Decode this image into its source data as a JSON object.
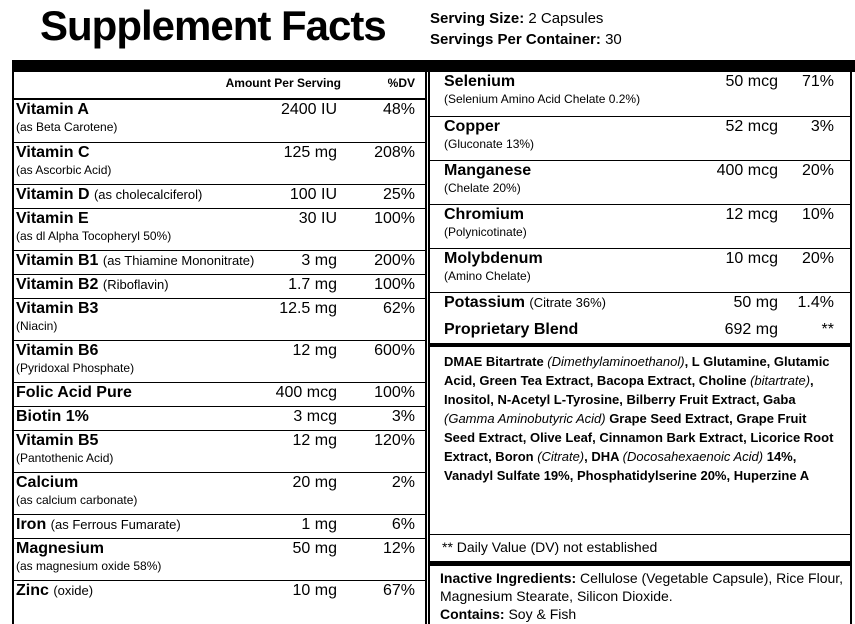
{
  "header": {
    "title": "Supplement Facts",
    "serving_size": {
      "label": "Serving Size:",
      "value": "2 Capsules"
    },
    "servings_per_container": {
      "label": "Servings Per Container:",
      "value": "30"
    }
  },
  "left_table": {
    "column_headers": [
      "Amount Per Serving",
      "%DV"
    ],
    "rows": [
      {
        "name": "Vitamin A",
        "note": "(as Beta Carotene)",
        "amount": "2400 IU",
        "dv": "48%"
      },
      {
        "name": "Vitamin C",
        "note": "(as Ascorbic Acid)",
        "amount": "125 mg",
        "dv": "208%"
      },
      {
        "name": "Vitamin D",
        "inline_note": "(as cholecalciferol)",
        "amount": "100 IU",
        "dv": "25%"
      },
      {
        "name": "Vitamin E",
        "note": "(as dl Alpha Tocopheryl 50%)",
        "amount": "30 IU",
        "dv": "100%"
      },
      {
        "name": "Vitamin B1",
        "inline_note": "(as Thiamine Mononitrate)",
        "amount": "3 mg",
        "dv": "200%"
      },
      {
        "name": "Vitamin B2",
        "inline_note": "(Riboflavin)",
        "amount": "1.7 mg",
        "dv": "100%"
      },
      {
        "name": "Vitamin B3",
        "note": "(Niacin)",
        "amount": "12.5 mg",
        "dv": "62%"
      },
      {
        "name": "Vitamin B6",
        "note": "(Pyridoxal Phosphate)",
        "amount": "12 mg",
        "dv": "600%"
      },
      {
        "name": "Folic Acid Pure",
        "amount": "400 mcg",
        "dv": "100%"
      },
      {
        "name": "Biotin 1%",
        "amount": "3 mcg",
        "dv": "3%"
      },
      {
        "name": "Vitamin B5",
        "note": "(Pantothenic Acid)",
        "amount": "12 mg",
        "dv": "120%"
      },
      {
        "name": "Calcium",
        "note": "(as calcium carbonate)",
        "amount": "20 mg",
        "dv": "2%"
      },
      {
        "name": "Iron",
        "inline_note": "(as Ferrous Fumarate)",
        "amount": "1 mg",
        "dv": "6%"
      },
      {
        "name": "Magnesium",
        "note": "(as magnesium oxide 58%)",
        "amount": "50 mg",
        "dv": "12%"
      },
      {
        "name": "Zinc",
        "inline_note": "(oxide)",
        "amount": "10 mg",
        "dv": "67%"
      }
    ]
  },
  "right_table": {
    "rows": [
      {
        "name": "Selenium",
        "note": "(Selenium Amino Acid Chelate 0.2%)",
        "amount": "50 mcg",
        "dv": "71%"
      },
      {
        "name": "Copper",
        "note": "(Gluconate 13%)",
        "amount": "52 mcg",
        "dv": "3%"
      },
      {
        "name": "Manganese",
        "note": "(Chelate 20%)",
        "amount": "400 mcg",
        "dv": "20%"
      },
      {
        "name": "Chromium",
        "note": "(Polynicotinate)",
        "amount": "12 mcg",
        "dv": "10%"
      },
      {
        "name": "Molybdenum",
        "note": "(Amino Chelate)",
        "amount": "10 mcg",
        "dv": "20%"
      },
      {
        "name": "Potassium",
        "inline_note": "(Citrate 36%)",
        "amount": "50 mg",
        "dv": "1.4%"
      }
    ]
  },
  "proprietary_blend": {
    "name": "Proprietary Blend",
    "amount": "692 mg",
    "dv": "**",
    "ingredients": [
      {
        "text": "DMAE Bitartrate ",
        "italic": false
      },
      {
        "text": "(Dimethylaminoethanol)",
        "italic": true
      },
      {
        "text": ", L Glutamine, Glutamic Acid, Green Tea Extract, Bacopa Extract, Choline ",
        "italic": false
      },
      {
        "text": "(bitartrate)",
        "italic": true
      },
      {
        "text": ", Inositol, N-Acetyl L-Tyrosine, Bilberry Fruit Extract, Gaba ",
        "italic": false
      },
      {
        "text": "(Gamma Aminobutyric Acid)",
        "italic": true
      },
      {
        "text": " Grape Seed Extract, Grape Fruit Seed Extract, Olive Leaf, Cinnamon Bark Extract, Licorice Root Extract, Boron ",
        "italic": false
      },
      {
        "text": "(Citrate)",
        "italic": true
      },
      {
        "text": ", DHA ",
        "italic": false
      },
      {
        "text": "(Docosahexaenoic Acid)",
        "italic": true
      },
      {
        "text": " 14%, Vanadyl Sulfate 19%, Phosphatidylserine 20%, Huperzine A",
        "italic": false
      }
    ]
  },
  "footnote": "** Daily Value (DV) not established",
  "inactive_ingredients": {
    "label": "Inactive Ingredients:",
    "text": "Cellulose (Vegetable Capsule), Rice Flour, Magnesium Stearate, Silicon Dioxide."
  },
  "contains": {
    "label": "Contains:",
    "text": "Soy & Fish"
  }
}
